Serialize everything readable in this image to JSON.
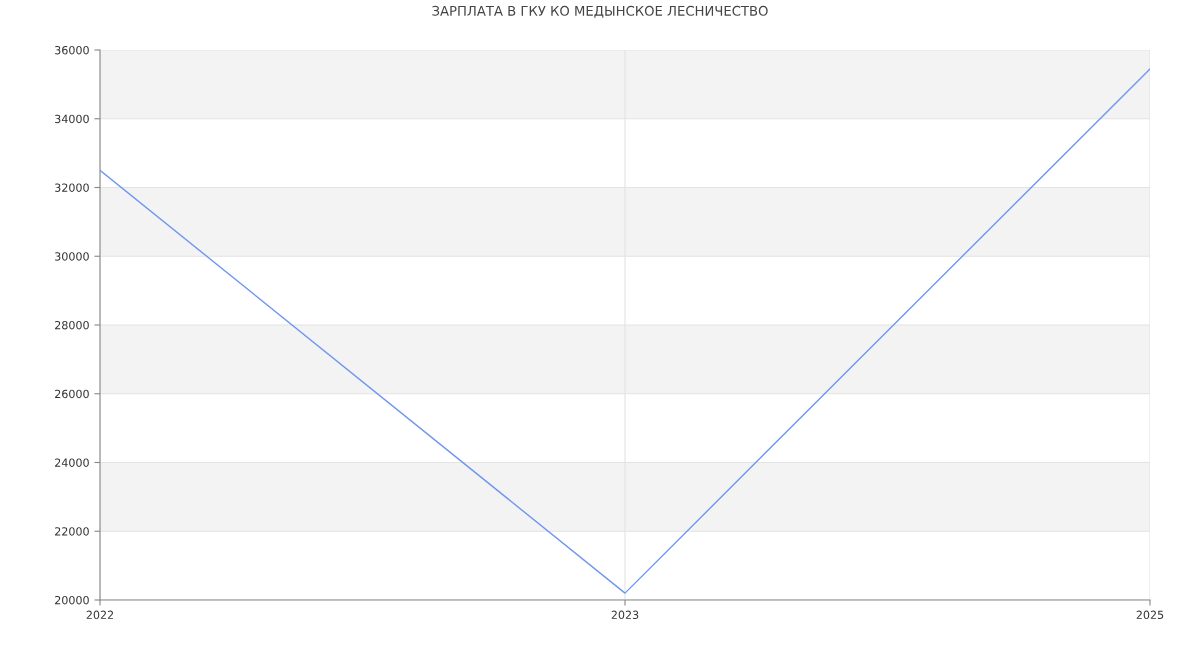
{
  "chart_data": {
    "type": "line",
    "title": "ЗАРПЛАТА В ГКУ КО МЕДЫНСКОЕ ЛЕСНИЧЕСТВО",
    "categories": [
      "2022",
      "2023",
      "2025"
    ],
    "series": [
      {
        "color": "#6f96f0",
        "values": [
          32500,
          20200,
          35450
        ]
      }
    ],
    "ylim": [
      20000,
      36000
    ],
    "yticks": [
      20000,
      22000,
      24000,
      26000,
      28000,
      30000,
      32000,
      34000,
      36000
    ],
    "bands": [
      {
        "axis": "y",
        "from": 22000,
        "to": 24000,
        "color": "#f3f3f3"
      },
      {
        "axis": "y",
        "from": 26000,
        "to": 28000,
        "color": "#f3f3f3"
      },
      {
        "axis": "y",
        "from": 30000,
        "to": 32000,
        "color": "#f3f3f3"
      },
      {
        "axis": "y",
        "from": 34000,
        "to": 36000,
        "color": "#f3f3f3"
      }
    ],
    "grid": true,
    "marker": "none",
    "line_style": "solid"
  }
}
